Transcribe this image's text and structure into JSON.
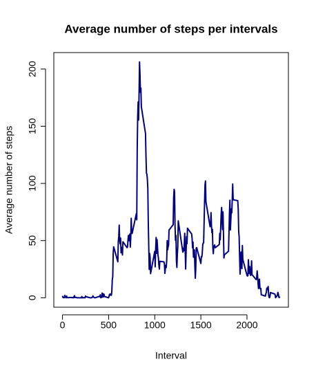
{
  "chart_data": {
    "type": "line",
    "title": "Average number of steps per intervals",
    "xlabel": "Interval",
    "ylabel": "Average number of steps",
    "xlim": [
      -94,
      2449
    ],
    "ylim": [
      -8.25,
      214.4
    ],
    "xticks": [
      0,
      500,
      1000,
      1500,
      2000
    ],
    "yticks": [
      0,
      50,
      100,
      150,
      200
    ],
    "x": [
      0,
      5,
      10,
      15,
      20,
      25,
      30,
      35,
      40,
      45,
      50,
      55,
      100,
      105,
      110,
      115,
      120,
      125,
      130,
      135,
      140,
      145,
      150,
      155,
      200,
      205,
      210,
      215,
      220,
      225,
      230,
      235,
      240,
      245,
      250,
      255,
      300,
      305,
      310,
      315,
      320,
      325,
      330,
      335,
      340,
      345,
      350,
      355,
      400,
      405,
      410,
      415,
      420,
      425,
      430,
      435,
      440,
      445,
      450,
      455,
      500,
      505,
      510,
      515,
      520,
      525,
      530,
      535,
      540,
      545,
      550,
      555,
      600,
      605,
      610,
      615,
      620,
      625,
      630,
      635,
      640,
      645,
      650,
      655,
      700,
      705,
      710,
      715,
      720,
      725,
      730,
      735,
      740,
      745,
      750,
      755,
      800,
      805,
      810,
      815,
      820,
      825,
      830,
      835,
      840,
      845,
      850,
      855,
      900,
      905,
      910,
      915,
      920,
      925,
      930,
      935,
      940,
      945,
      950,
      955,
      1000,
      1005,
      1010,
      1015,
      1020,
      1025,
      1030,
      1035,
      1040,
      1045,
      1050,
      1055,
      1100,
      1105,
      1110,
      1115,
      1120,
      1125,
      1130,
      1135,
      1140,
      1145,
      1150,
      1155,
      1200,
      1205,
      1210,
      1215,
      1220,
      1225,
      1230,
      1235,
      1240,
      1245,
      1250,
      1255,
      1300,
      1305,
      1310,
      1315,
      1320,
      1325,
      1330,
      1335,
      1340,
      1345,
      1350,
      1355,
      1400,
      1405,
      1410,
      1415,
      1420,
      1425,
      1430,
      1435,
      1440,
      1445,
      1450,
      1455,
      1500,
      1505,
      1510,
      1515,
      1520,
      1525,
      1530,
      1535,
      1540,
      1545,
      1550,
      1555,
      1600,
      1605,
      1610,
      1615,
      1620,
      1625,
      1630,
      1635,
      1640,
      1645,
      1650,
      1655,
      1700,
      1705,
      1710,
      1715,
      1720,
      1725,
      1730,
      1735,
      1740,
      1745,
      1750,
      1755,
      1800,
      1805,
      1810,
      1815,
      1820,
      1825,
      1830,
      1835,
      1840,
      1845,
      1850,
      1855,
      1900,
      1905,
      1910,
      1915,
      1920,
      1925,
      1930,
      1935,
      1940,
      1945,
      1950,
      1955,
      2000,
      2005,
      2010,
      2015,
      2020,
      2025,
      2030,
      2035,
      2040,
      2045,
      2050,
      2055,
      2100,
      2105,
      2110,
      2115,
      2120,
      2125,
      2130,
      2135,
      2140,
      2145,
      2150,
      2155,
      2200,
      2205,
      2210,
      2215,
      2220,
      2225,
      2230,
      2235,
      2240,
      2245,
      2250,
      2255,
      2300,
      2305,
      2310,
      2315,
      2320,
      2325,
      2330,
      2335,
      2340,
      2345,
      2350,
      2355
    ],
    "series": [
      {
        "name": "steps",
        "color": "#000080",
        "values": [
          1.7,
          0.3,
          0.1,
          0.2,
          0.1,
          2.1,
          0.5,
          0.9,
          0,
          1.5,
          0.3,
          0.1,
          0.3,
          0,
          0.1,
          0.3,
          0,
          1.1,
          1.8,
          0.2,
          0.2,
          0.4,
          0.3,
          0,
          0,
          0,
          1.1,
          0,
          0,
          0.1,
          0,
          0.2,
          0,
          0,
          1.5,
          0.9,
          0,
          0,
          0,
          0,
          0.2,
          0.6,
          1.6,
          0.6,
          0.5,
          0.1,
          0,
          0,
          1.2,
          0.9,
          2.6,
          0,
          0.3,
          0.4,
          4.1,
          0.7,
          3.5,
          0.8,
          3.1,
          1.1,
          0,
          1.6,
          3.0,
          2.2,
          3.3,
          3.0,
          2.1,
          6.1,
          16.0,
          18.3,
          39.5,
          44.5,
          31.5,
          49.3,
          53.8,
          63.5,
          50.0,
          47.1,
          52.2,
          39.3,
          44.0,
          44.2,
          37.4,
          49.0,
          43.8,
          44.4,
          50.5,
          54.5,
          49.9,
          51.0,
          55.7,
          44.3,
          52.3,
          69.5,
          57.8,
          56.2,
          73.4,
          68.2,
          129.4,
          157.5,
          171.2,
          155.4,
          177.3,
          206.2,
          195.9,
          179.6,
          183.4,
          167.0,
          143.5,
          124.0,
          109.1,
          108.1,
          103.7,
          95.97,
          66.2,
          45.2,
          24.8,
          38.8,
          34.98,
          21.1,
          40.6,
          27.0,
          42.4,
          52.7,
          38.9,
          50.8,
          44.3,
          37.4,
          34.7,
          28.3,
          25.1,
          31.9,
          31.4,
          29.7,
          21.3,
          25.5,
          28.4,
          26.5,
          33.4,
          50.0,
          42.0,
          44.6,
          46.0,
          59.2,
          63.9,
          87.7,
          94.8,
          92.8,
          63.4,
          50.2,
          54.5,
          32.4,
          26.5,
          37.7,
          45.1,
          67.3,
          42.3,
          39.9,
          43.3,
          40.98,
          46.2,
          56.4,
          42.75,
          25.1,
          39.96,
          53.5,
          47.3,
          60.8,
          55.75,
          51.96,
          43.6,
          48.7,
          35.5,
          37.5,
          41.85,
          27.5,
          17.1,
          26.1,
          43.6,
          43.8,
          30.0,
          36.1,
          35.5,
          38.8,
          45.96,
          47.75,
          48.1,
          65.3,
          82.9,
          98.7,
          102.1,
          83.96,
          62.1,
          64.1,
          74.5,
          63.2,
          56.9,
          59.8,
          43.9,
          38.6,
          44.7,
          45.5,
          46.2,
          43.7,
          46.6,
          56.3,
          50.7,
          61.2,
          72.7,
          78.9,
          68.9,
          59.7,
          75.1,
          56.5,
          34.8,
          37.5,
          40.7,
          58.0,
          74.7,
          85.3,
          59.3,
          67.8,
          77.7,
          74.2,
          85.3,
          99.45,
          86.6,
          85.6,
          84.9,
          77.8,
          58.0,
          53.4,
          36.3,
          20.7,
          27.4,
          40.0,
          30.2,
          25.5,
          45.7,
          33.5,
          19.6,
          19.0,
          19.3,
          33.3,
          26.8,
          21.2,
          27.3,
          21.3,
          19.5,
          21.3,
          32.3,
          20.2,
          15.9,
          17.2,
          23.5,
          19.2,
          12.5,
          8.0,
          14.7,
          16.3,
          8.7,
          7.8,
          8.1,
          2.6,
          1.5,
          3.7,
          4.8,
          8.5,
          7.1,
          8.7,
          9.8,
          2.2,
          0.3,
          0.1,
          1.6,
          4.6,
          3.3,
          2.8,
          0,
          0.8,
          1.0,
          1.6,
          2.6,
          4.7,
          3.3,
          0.6,
          0.2,
          1.1
        ]
      }
    ]
  }
}
